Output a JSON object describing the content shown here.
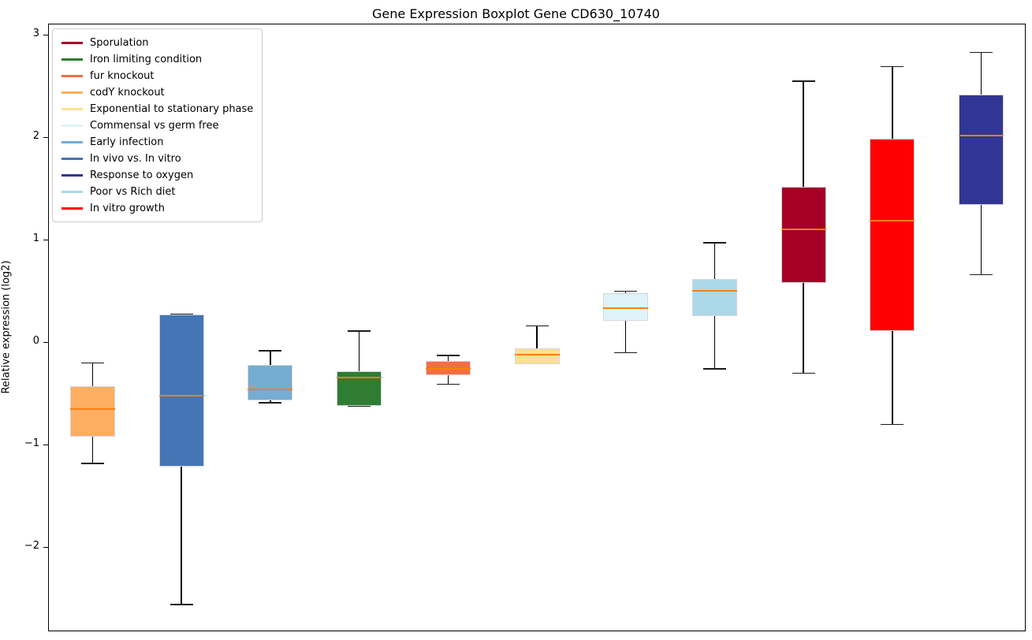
{
  "title": "Gene Expression Boxplot Gene CD630_10740",
  "y_axis": {
    "label": "Relative expression (log2)",
    "ticks": [
      {
        "value": 3,
        "label": "3"
      },
      {
        "value": 2,
        "label": "2"
      },
      {
        "value": 1,
        "label": "1"
      },
      {
        "value": 0,
        "label": "0"
      },
      {
        "value": -1,
        "label": "−1"
      },
      {
        "value": -2,
        "label": "−2"
      }
    ]
  },
  "legend": {
    "items": [
      {
        "label": "Sporulation",
        "color": "#A50026"
      },
      {
        "label": "Iron limiting condition",
        "color": "#2E7D32"
      },
      {
        "label": "fur knockout",
        "color": "#F46D43"
      },
      {
        "label": "codY knockout",
        "color": "#FDAE61"
      },
      {
        "label": "Exponential to stationary phase",
        "color": "#FEE090"
      },
      {
        "label": "Commensal vs germ free",
        "color": "#E0F3F8"
      },
      {
        "label": "Early infection",
        "color": "#74ADD1"
      },
      {
        "label": "In vivo vs. In vitro",
        "color": "#4575B4"
      },
      {
        "label": "Response to oxygen",
        "color": "#313695"
      },
      {
        "label": "Poor vs Rich diet",
        "color": "#ABD9E9"
      },
      {
        "label": "In vitro growth",
        "color": "#FF0000"
      }
    ]
  },
  "chart_data": {
    "type": "boxplot",
    "title": "Gene Expression Boxplot Gene CD630_10740",
    "xlabel": "",
    "ylabel": "Relative expression (log2)",
    "ylim": [
      -2.82,
      3.11
    ],
    "yticks": [
      -2,
      -1,
      0,
      1,
      2,
      3
    ],
    "grid": false,
    "legend_position": "upper left",
    "median_color": "#FF7F0E",
    "series": [
      {
        "name": "codY knockout",
        "color": "#FDAE61",
        "whisker_low": -1.18,
        "q1": -0.92,
        "median": -0.65,
        "q3": -0.43,
        "whisker_high": -0.2
      },
      {
        "name": "In vivo vs. In vitro",
        "color": "#4575B4",
        "whisker_low": -2.56,
        "q1": -1.21,
        "median": -0.52,
        "q3": 0.27,
        "whisker_high": 0.27
      },
      {
        "name": "Early infection",
        "color": "#74ADD1",
        "whisker_low": -0.59,
        "q1": -0.57,
        "median": -0.46,
        "q3": -0.22,
        "whisker_high": -0.08
      },
      {
        "name": "Iron limiting condition",
        "color": "#2E7D32",
        "whisker_low": -0.62,
        "q1": -0.62,
        "median": -0.34,
        "q3": -0.28,
        "whisker_high": 0.11
      },
      {
        "name": "fur knockout",
        "color": "#F46D43",
        "whisker_low": -0.41,
        "q1": -0.32,
        "median": -0.26,
        "q3": -0.18,
        "whisker_high": -0.13
      },
      {
        "name": "Exponential to stationary phase",
        "color": "#FEE090",
        "whisker_low": -0.21,
        "q1": -0.21,
        "median": -0.12,
        "q3": -0.06,
        "whisker_high": 0.16
      },
      {
        "name": "Commensal vs germ free",
        "color": "#E0F3F8",
        "whisker_low": -0.1,
        "q1": 0.21,
        "median": 0.33,
        "q3": 0.48,
        "whisker_high": 0.5
      },
      {
        "name": "Poor vs Rich diet",
        "color": "#ABD9E9",
        "whisker_low": -0.26,
        "q1": 0.26,
        "median": 0.5,
        "q3": 0.62,
        "whisker_high": 0.97
      },
      {
        "name": "Sporulation",
        "color": "#A50026",
        "whisker_low": -0.3,
        "q1": 0.58,
        "median": 1.1,
        "q3": 1.52,
        "whisker_high": 2.55
      },
      {
        "name": "In vitro growth",
        "color": "#FF0000",
        "whisker_low": -0.8,
        "q1": 0.11,
        "median": 1.19,
        "q3": 1.99,
        "whisker_high": 2.69
      },
      {
        "name": "Response to oxygen",
        "color": "#313695",
        "whisker_low": 0.66,
        "q1": 1.34,
        "median": 2.02,
        "q3": 2.42,
        "whisker_high": 2.83
      }
    ]
  }
}
